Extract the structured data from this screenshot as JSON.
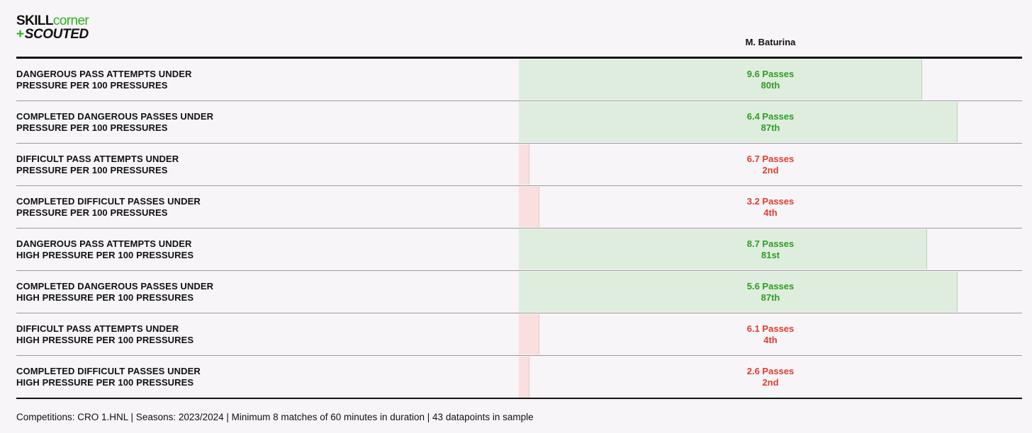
{
  "logo": {
    "line1_a": "SKILL",
    "line1_b": "corner",
    "line2_plus": "+",
    "line2_b": "SCOUTED"
  },
  "colors": {
    "good": "#2e9e22",
    "bad": "#e23c2e",
    "good_fill": "#deeddd",
    "bad_fill": "#fadfdf"
  },
  "header": {
    "player": "M. Baturina"
  },
  "chart_data": {
    "type": "bar",
    "orientation": "horizontal",
    "series": [
      {
        "name": "M. Baturina"
      }
    ],
    "percentile_range": [
      0,
      100
    ],
    "rows": [
      {
        "label1": "DANGEROUS PASS ATTEMPTS UNDER",
        "label2": "PRESSURE PER 100 PRESSURES",
        "value": "9.6 Passes",
        "percentile": 80,
        "percentile_label": "80th",
        "rating": "good"
      },
      {
        "label1": "COMPLETED DANGEROUS PASSES UNDER",
        "label2": "PRESSURE PER 100 PRESSURES",
        "value": "6.4 Passes",
        "percentile": 87,
        "percentile_label": "87th",
        "rating": "good"
      },
      {
        "label1": "DIFFICULT PASS ATTEMPTS UNDER",
        "label2": "PRESSURE PER 100 PRESSURES",
        "value": "6.7 Passes",
        "percentile": 2,
        "percentile_label": "2nd",
        "rating": "bad"
      },
      {
        "label1": "COMPLETED DIFFICULT PASSES UNDER",
        "label2": "PRESSURE PER 100 PRESSURES",
        "value": "3.2 Passes",
        "percentile": 4,
        "percentile_label": "4th",
        "rating": "bad"
      },
      {
        "label1": "DANGEROUS PASS ATTEMPTS UNDER",
        "label2": "HIGH PRESSURE PER 100 PRESSURES",
        "value": "8.7 Passes",
        "percentile": 81,
        "percentile_label": "81st",
        "rating": "good"
      },
      {
        "label1": "COMPLETED DANGEROUS PASSES UNDER",
        "label2": "HIGH PRESSURE PER 100 PRESSURES",
        "value": "5.6 Passes",
        "percentile": 87,
        "percentile_label": "87th",
        "rating": "good"
      },
      {
        "label1": "DIFFICULT PASS ATTEMPTS UNDER",
        "label2": "HIGH PRESSURE PER 100 PRESSURES",
        "value": "6.1 Passes",
        "percentile": 4,
        "percentile_label": "4th",
        "rating": "bad"
      },
      {
        "label1": "COMPLETED DIFFICULT PASSES UNDER",
        "label2": "HIGH PRESSURE PER 100 PRESSURES",
        "value": "2.6 Passes",
        "percentile": 2,
        "percentile_label": "2nd",
        "rating": "bad"
      }
    ]
  },
  "footer": {
    "text": "Competitions: CRO 1.HNL | Seasons: 2023/2024 | Minimum 8 matches of 60 minutes in duration | 43 datapoints in sample"
  }
}
